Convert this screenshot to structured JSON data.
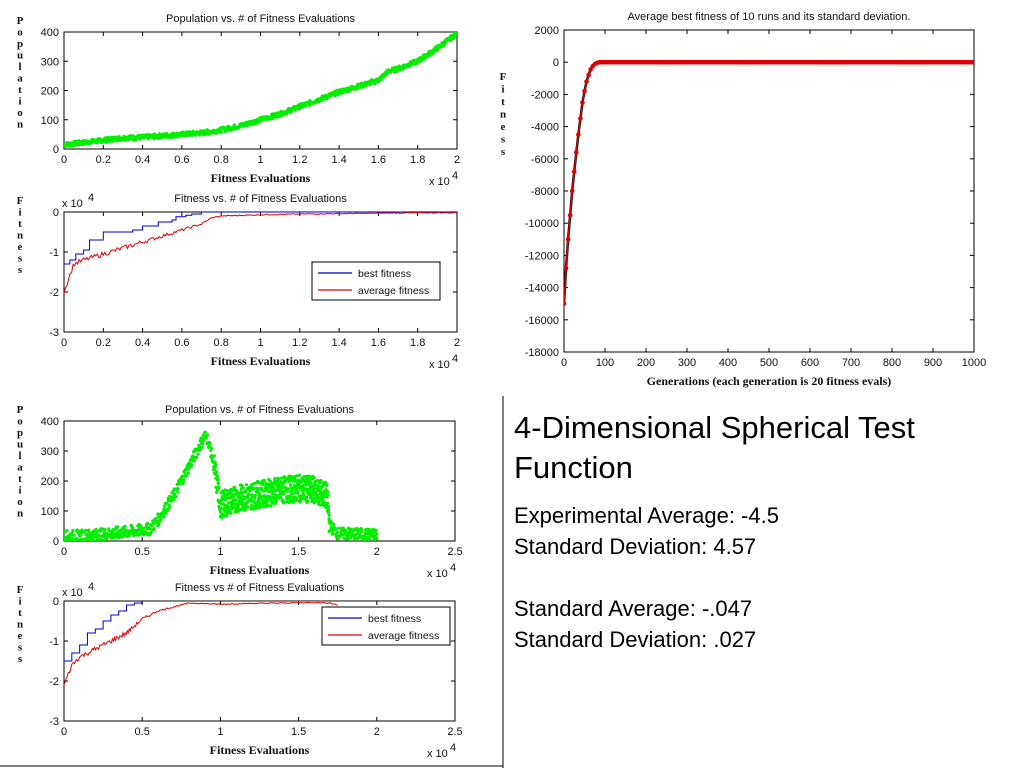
{
  "heading": "4-Dimensional Spherical Test Function",
  "stats": {
    "experimental_average": "Experimental Average: -4.5",
    "experimental_sd": "Standard Deviation: 4.57",
    "standard_average": "Standard Average: -.047",
    "standard_sd": "Standard Deviation: .027"
  },
  "colors": {
    "green": "#00ee00",
    "blue": "#0000cc",
    "red": "#dd0000",
    "black": "#000000"
  },
  "chart_data": [
    {
      "id": "pop1",
      "type": "scatter",
      "title": "Population vs. # of Fitness Evaluations",
      "xlabel": "Fitness Evaluations",
      "ylabel": "Population",
      "x_exponent": "x 10",
      "x_exponent_power": "4",
      "xlim": [
        0,
        2
      ],
      "ylim": [
        0,
        400
      ],
      "xticks": [
        "0",
        "0.2",
        "0.4",
        "0.6",
        "0.8",
        "1",
        "1.2",
        "1.4",
        "1.6",
        "1.8",
        "2"
      ],
      "yticks": [
        "0",
        "100",
        "200",
        "300",
        "400"
      ],
      "series": [
        {
          "color": "#00ee00",
          "x": [
            0,
            0.1,
            0.2,
            0.3,
            0.4,
            0.5,
            0.6,
            0.7,
            0.8,
            0.9,
            1.0,
            1.1,
            1.2,
            1.3,
            1.4,
            1.5,
            1.6,
            1.65,
            1.7,
            1.8,
            1.9,
            2.0
          ],
          "y": [
            15,
            22,
            30,
            38,
            40,
            45,
            50,
            55,
            65,
            80,
            100,
            120,
            145,
            170,
            195,
            215,
            235,
            265,
            275,
            300,
            345,
            395
          ]
        }
      ]
    },
    {
      "id": "fit1",
      "type": "line",
      "title": "Fitness vs. # of Fitness Evaluations",
      "xlabel": "Fitness Evaluations",
      "ylabel": "Fitness",
      "x_exponent": "x 10",
      "x_exponent_power": "4",
      "y_exponent": "x 10",
      "y_exponent_power": "4",
      "xlim": [
        0,
        2
      ],
      "ylim": [
        -3,
        0
      ],
      "xticks": [
        "0",
        "0.2",
        "0.4",
        "0.6",
        "0.8",
        "1",
        "1.2",
        "1.4",
        "1.6",
        "1.8",
        "2"
      ],
      "yticks": [
        "-3",
        "-2",
        "-1",
        "0"
      ],
      "legend": [
        "best fitness",
        "average fitness"
      ],
      "series": [
        {
          "name": "best fitness",
          "color": "#0000cc",
          "step": true,
          "x": [
            0,
            0.03,
            0.06,
            0.1,
            0.13,
            0.2,
            0.35,
            0.4,
            0.48,
            0.55,
            0.57,
            0.62,
            0.65,
            0.7,
            2.0
          ],
          "y": [
            -1.3,
            -1.2,
            -1.05,
            -0.95,
            -0.7,
            -0.5,
            -0.45,
            -0.35,
            -0.25,
            -0.2,
            -0.12,
            -0.08,
            -0.05,
            0,
            0
          ]
        },
        {
          "name": "average fitness",
          "color": "#dd0000",
          "noisy": true,
          "x": [
            0,
            0.05,
            0.1,
            0.2,
            0.3,
            0.4,
            0.5,
            0.6,
            0.7,
            0.75,
            0.8,
            1.0,
            1.2,
            1.4,
            1.6,
            1.8,
            2.0
          ],
          "y": [
            -2.0,
            -1.3,
            -1.2,
            -1.05,
            -0.9,
            -0.75,
            -0.6,
            -0.45,
            -0.3,
            -0.15,
            -0.1,
            -0.07,
            -0.05,
            -0.04,
            -0.03,
            -0.02,
            -0.02
          ]
        }
      ]
    },
    {
      "id": "avg",
      "type": "line",
      "title": "Average best fitness of 10 runs and its standard deviation.",
      "xlabel": "Generations (each generation is 20 fitness evals)",
      "ylabel": "Fitness",
      "xlim": [
        0,
        1000
      ],
      "ylim": [
        -18000,
        2000
      ],
      "xticks": [
        "0",
        "100",
        "200",
        "300",
        "400",
        "500",
        "600",
        "700",
        "800",
        "900",
        "1000"
      ],
      "yticks": [
        "-18000",
        "-16000",
        "-14000",
        "-12000",
        "-10000",
        "-8000",
        "-6000",
        "-4000",
        "-2000",
        "0",
        "2000"
      ],
      "series": [
        {
          "color": "#dd0000",
          "markers": true,
          "x": [
            0,
            5,
            10,
            15,
            20,
            25,
            30,
            35,
            40,
            45,
            50,
            55,
            60,
            65,
            70,
            75,
            80,
            85,
            90,
            100,
            150,
            200,
            300,
            400,
            500,
            600,
            700,
            800,
            900,
            1000
          ],
          "y": [
            -15000,
            -12800,
            -11000,
            -9500,
            -8000,
            -6800,
            -5600,
            -4500,
            -3500,
            -2500,
            -1800,
            -1200,
            -800,
            -450,
            -250,
            -120,
            -50,
            -10,
            0,
            0,
            0,
            0,
            0,
            0,
            0,
            0,
            0,
            0,
            0,
            0
          ]
        }
      ]
    },
    {
      "id": "pop2",
      "type": "scatter",
      "title": "Population vs. # of Fitness Evaluations",
      "xlabel": "Fitness Evaluations",
      "ylabel": "Population",
      "x_exponent": "x 10",
      "x_exponent_power": "4",
      "xlim": [
        0,
        2.5
      ],
      "ylim": [
        0,
        400
      ],
      "xticks": [
        "0",
        "0.5",
        "1",
        "1.5",
        "2",
        "2.5"
      ],
      "yticks": [
        "0",
        "100",
        "200",
        "300",
        "400"
      ],
      "series": [
        {
          "color": "#00ee00",
          "band": true,
          "x": [
            0,
            0.2,
            0.4,
            0.55,
            0.6,
            0.7,
            0.8,
            0.88,
            0.9,
            0.92,
            0.96,
            1.0,
            1.1,
            1.2,
            1.3,
            1.4,
            1.5,
            1.6,
            1.68,
            1.7,
            1.75,
            2.0
          ],
          "y": [
            15,
            20,
            30,
            40,
            70,
            150,
            250,
            330,
            350,
            340,
            250,
            120,
            140,
            150,
            160,
            170,
            175,
            170,
            150,
            50,
            25,
            20
          ]
        }
      ]
    },
    {
      "id": "fit2",
      "type": "line",
      "title": "Fitness vs # of Fitness Evaluations",
      "xlabel": "Fitness Evaluations",
      "ylabel": "Fitness",
      "x_exponent": "x 10",
      "x_exponent_power": "4",
      "y_exponent": "x 10",
      "y_exponent_power": "4",
      "xlim": [
        0,
        2.5
      ],
      "ylim": [
        -3,
        0
      ],
      "xticks": [
        "0",
        "0.5",
        "1",
        "1.5",
        "2",
        "2.5"
      ],
      "yticks": [
        "-3",
        "-2",
        "-1",
        "0"
      ],
      "legend": [
        "best fitness",
        "average fitness"
      ],
      "series": [
        {
          "name": "best fitness",
          "color": "#0000cc",
          "step": true,
          "x": [
            0,
            0.05,
            0.1,
            0.15,
            0.2,
            0.25,
            0.3,
            0.35,
            0.4,
            0.45,
            0.5,
            2.5
          ],
          "y": [
            -1.5,
            -1.3,
            -1.1,
            -0.8,
            -0.7,
            -0.5,
            -0.35,
            -0.25,
            -0.1,
            -0.05,
            0,
            0
          ]
        },
        {
          "name": "average fitness",
          "color": "#dd0000",
          "noisy": true,
          "x": [
            0,
            0.05,
            0.1,
            0.2,
            0.3,
            0.4,
            0.5,
            0.6,
            0.7,
            0.8,
            1.0,
            1.2,
            1.4,
            1.6,
            1.7,
            1.75
          ],
          "y": [
            -2.1,
            -1.6,
            -1.4,
            -1.2,
            -1.0,
            -0.8,
            -0.45,
            -0.25,
            -0.15,
            -0.05,
            -0.08,
            -0.06,
            -0.05,
            -0.04,
            -0.05,
            -0.1
          ]
        }
      ]
    }
  ]
}
